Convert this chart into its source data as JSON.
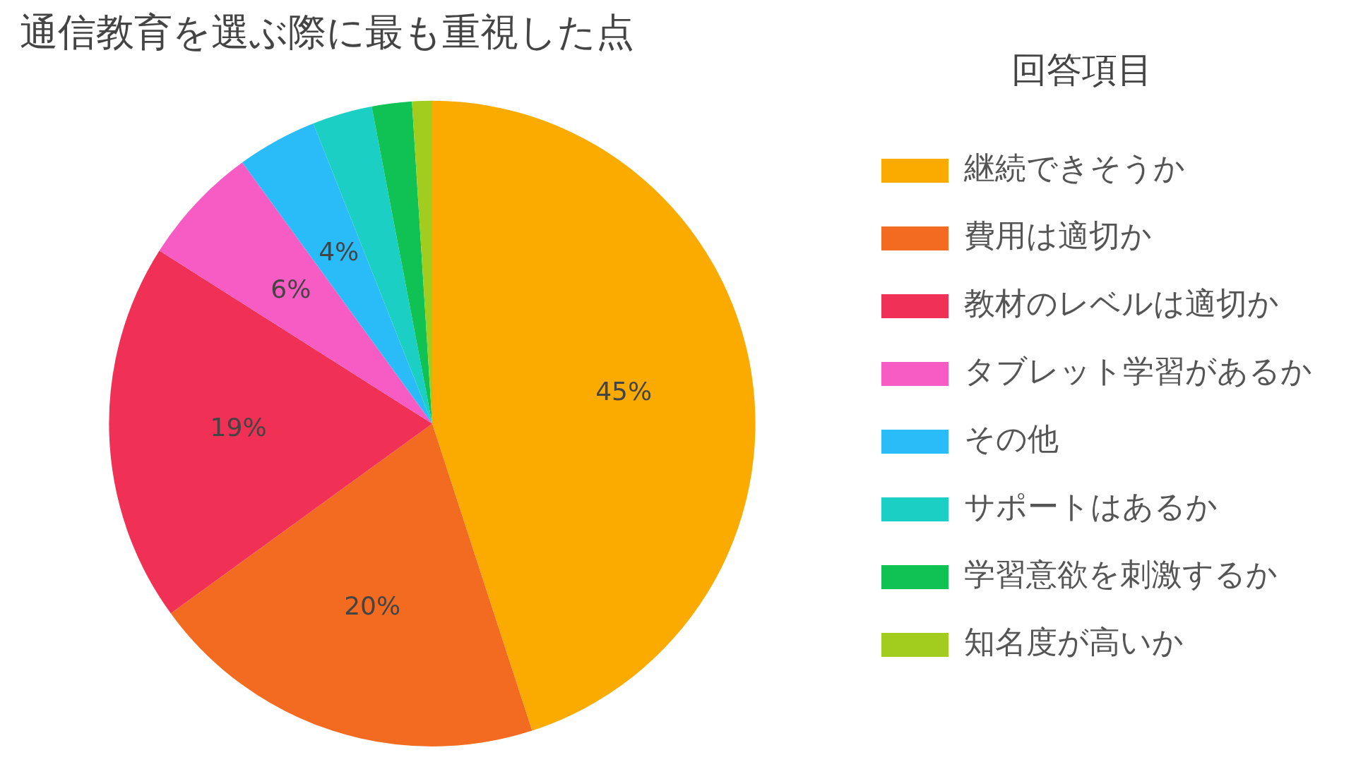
{
  "chart_data": {
    "type": "pie",
    "title": "通信教育を選ぶ際に最も重視した点",
    "legend_title": "回答項目",
    "legend": "right",
    "categories": [
      "継続できそうか",
      "費用は適切か",
      "教材のレベルは適切か",
      "タブレット学習があるか",
      "その他",
      "サポートはあるか",
      "学習意欲を刺激するか",
      "知名度が高いか"
    ],
    "values": [
      45,
      20,
      19,
      6,
      4,
      3,
      2,
      1
    ],
    "value_labels": [
      "45%",
      "20%",
      "19%",
      "6%",
      "4%",
      null,
      null,
      null
    ],
    "colors": [
      "#fbab00",
      "#f26b21",
      "#f03054",
      "#f75bc4",
      "#29bcf9",
      "#1ccfc4",
      "#10c154",
      "#a2cc1e"
    ]
  }
}
